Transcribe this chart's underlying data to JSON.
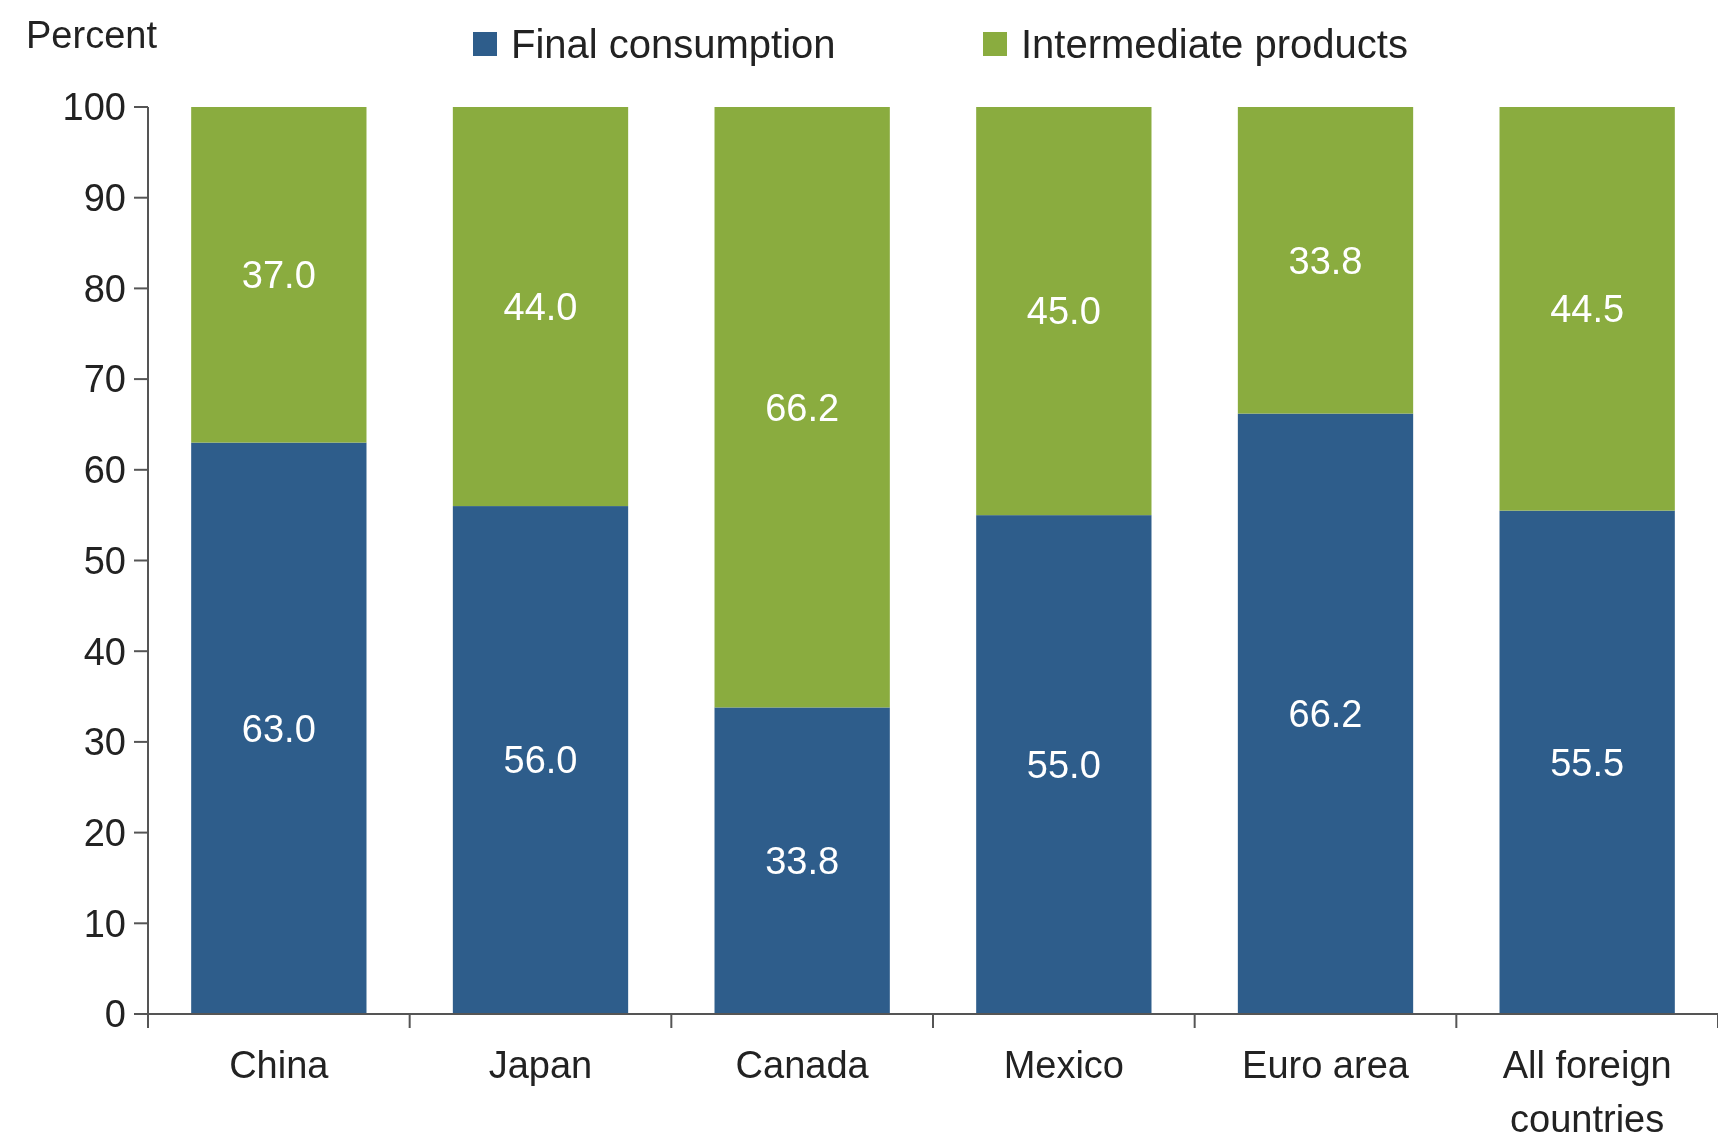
{
  "chart_data": {
    "type": "bar",
    "stacked": true,
    "ylabel": "Percent",
    "categories": [
      "China",
      "Japan",
      "Canada",
      "Mexico",
      "Euro area",
      "All foreign countries"
    ],
    "series": [
      {
        "name": "Final consumption",
        "color": "#2e5d8b",
        "values": [
          63.0,
          56.0,
          33.8,
          55.0,
          66.2,
          55.5
        ],
        "value_labels": [
          "63.0",
          "56.0",
          "33.8",
          "55.0",
          "66.2",
          "55.5"
        ]
      },
      {
        "name": "Intermediate products",
        "color": "#8aac3f",
        "values": [
          37.0,
          44.0,
          66.2,
          45.0,
          33.8,
          44.5
        ],
        "value_labels": [
          "37.0",
          "44.0",
          "66.2",
          "45.0",
          "33.8",
          "44.5"
        ]
      }
    ],
    "ylim": [
      0,
      100
    ],
    "yticks": [
      0,
      10,
      20,
      30,
      40,
      50,
      60,
      70,
      80,
      90,
      100
    ],
    "legend": "top"
  }
}
